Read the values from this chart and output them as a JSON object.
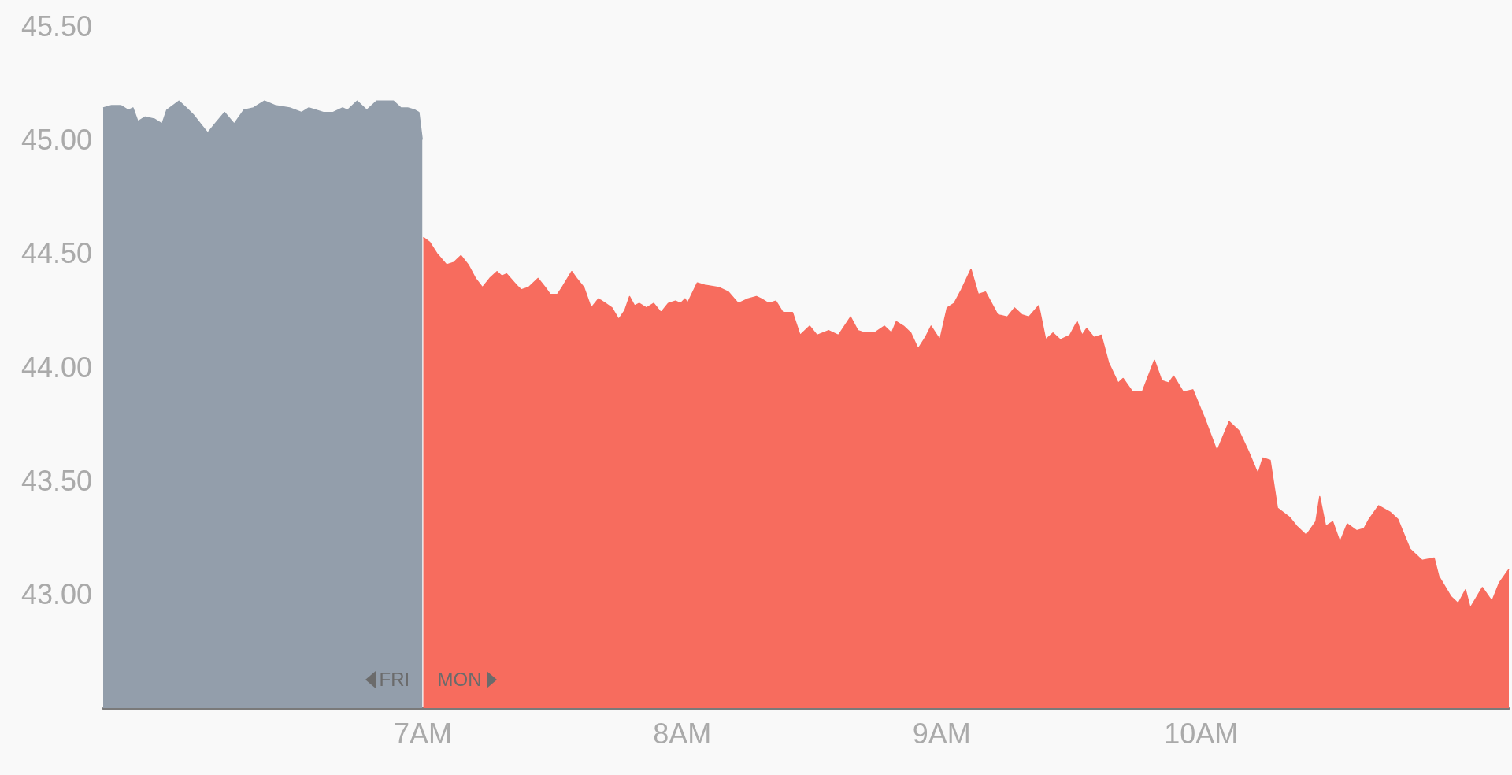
{
  "chart_data": {
    "type": "area",
    "xlim": [
      5.768,
      11.186
    ],
    "xticks": [
      {
        "value": 7,
        "label": "7AM"
      },
      {
        "value": 8,
        "label": "8AM"
      },
      {
        "value": 9,
        "label": "9AM"
      },
      {
        "value": 10,
        "label": "10AM"
      }
    ],
    "ylim": [
      42.5,
      45.5
    ],
    "yticks": [
      {
        "value": 43,
        "label": "43.00"
      },
      {
        "value": 43.5,
        "label": "43.50"
      },
      {
        "value": 44,
        "label": "44.00"
      },
      {
        "value": 44.5,
        "label": "44.50"
      },
      {
        "value": 45,
        "label": "45.00"
      },
      {
        "value": 45.5,
        "label": "45.50"
      }
    ],
    "grid": false,
    "legend": false,
    "marker": "none",
    "series": [
      {
        "name": "FRI",
        "color": "#939eab",
        "x": [
          5.768,
          5.8,
          5.837,
          5.865,
          5.883,
          5.902,
          5.93,
          5.967,
          5.995,
          6.013,
          6.06,
          6.088,
          6.115,
          6.143,
          6.171,
          6.199,
          6.236,
          6.273,
          6.31,
          6.347,
          6.39,
          6.431,
          6.487,
          6.533,
          6.561,
          6.617,
          6.654,
          6.691,
          6.71,
          6.747,
          6.784,
          6.822,
          6.859,
          6.887,
          6.915,
          6.942,
          6.97,
          6.985,
          6.998
        ],
        "values": [
          45.14,
          45.15,
          45.15,
          45.13,
          45.14,
          45.08,
          45.1,
          45.09,
          45.07,
          45.13,
          45.17,
          45.14,
          45.11,
          45.07,
          45.03,
          45.07,
          45.12,
          45.07,
          45.13,
          45.14,
          45.17,
          45.15,
          45.14,
          45.12,
          45.14,
          45.12,
          45.12,
          45.14,
          45.13,
          45.17,
          45.13,
          45.17,
          45.17,
          45.17,
          45.14,
          45.14,
          45.13,
          45.12,
          45.0
        ]
      },
      {
        "name": "MON",
        "color": "#f76c5e",
        "x": [
          7.002,
          7.026,
          7.054,
          7.091,
          7.119,
          7.147,
          7.175,
          7.203,
          7.23,
          7.258,
          7.286,
          7.305,
          7.323,
          7.361,
          7.379,
          7.407,
          7.444,
          7.472,
          7.491,
          7.519,
          7.537,
          7.574,
          7.593,
          7.621,
          7.649,
          7.677,
          7.704,
          7.729,
          7.755,
          7.779,
          7.797,
          7.816,
          7.834,
          7.862,
          7.89,
          7.918,
          7.946,
          7.974,
          7.993,
          8.011,
          8.02,
          8.058,
          8.086,
          8.141,
          8.178,
          8.216,
          8.253,
          8.286,
          8.305,
          8.333,
          8.361,
          8.388,
          8.425,
          8.454,
          8.491,
          8.519,
          8.565,
          8.602,
          8.649,
          8.677,
          8.704,
          8.741,
          8.779,
          8.807,
          8.825,
          8.853,
          8.881,
          8.909,
          8.937,
          8.959,
          8.993,
          9.021,
          9.048,
          9.076,
          9.113,
          9.141,
          9.169,
          9.216,
          9.253,
          9.281,
          9.309,
          9.336,
          9.374,
          9.401,
          9.429,
          9.457,
          9.494,
          9.522,
          9.541,
          9.559,
          9.587,
          9.615,
          9.643,
          9.68,
          9.699,
          9.736,
          9.773,
          9.82,
          9.848,
          9.875,
          9.894,
          9.931,
          9.968,
          10.015,
          10.061,
          10.108,
          10.145,
          10.182,
          10.219,
          10.238,
          10.266,
          10.294,
          10.34,
          10.368,
          10.405,
          10.442,
          10.457,
          10.48,
          10.507,
          10.535,
          10.563,
          10.6,
          10.628,
          10.647,
          10.684,
          10.73,
          10.758,
          10.805,
          10.851,
          10.898,
          10.916,
          10.963,
          10.991,
          11.019,
          11.037,
          11.084,
          11.121,
          11.149,
          11.186
        ],
        "values": [
          44.57,
          44.55,
          44.5,
          44.45,
          44.46,
          44.49,
          44.45,
          44.39,
          44.35,
          44.39,
          44.42,
          44.4,
          44.41,
          44.36,
          44.34,
          44.35,
          44.39,
          44.35,
          44.32,
          44.32,
          44.35,
          44.42,
          44.39,
          44.35,
          44.26,
          44.3,
          44.28,
          44.26,
          44.21,
          44.25,
          44.31,
          44.27,
          44.28,
          44.26,
          44.28,
          44.24,
          44.28,
          44.29,
          44.28,
          44.3,
          44.28,
          44.37,
          44.36,
          44.35,
          44.33,
          44.28,
          44.3,
          44.31,
          44.3,
          44.28,
          44.29,
          44.24,
          44.24,
          44.14,
          44.18,
          44.14,
          44.16,
          44.14,
          44.22,
          44.16,
          44.15,
          44.15,
          44.18,
          44.15,
          44.2,
          44.18,
          44.15,
          44.08,
          44.13,
          44.18,
          44.12,
          44.26,
          44.28,
          44.34,
          44.43,
          44.32,
          44.33,
          44.23,
          44.22,
          44.26,
          44.23,
          44.22,
          44.27,
          44.12,
          44.15,
          44.12,
          44.14,
          44.2,
          44.14,
          44.17,
          44.13,
          44.14,
          44.02,
          43.93,
          43.95,
          43.89,
          43.89,
          44.03,
          43.94,
          43.93,
          43.96,
          43.89,
          43.9,
          43.77,
          43.63,
          43.76,
          43.72,
          43.63,
          43.53,
          43.6,
          43.59,
          43.38,
          43.34,
          43.3,
          43.26,
          43.32,
          43.43,
          43.3,
          43.32,
          43.23,
          43.31,
          43.28,
          43.29,
          43.33,
          43.39,
          43.36,
          43.33,
          43.2,
          43.15,
          43.16,
          43.08,
          42.99,
          42.96,
          43.02,
          42.94,
          43.03,
          42.97,
          43.05,
          43.11
        ]
      }
    ]
  }
}
